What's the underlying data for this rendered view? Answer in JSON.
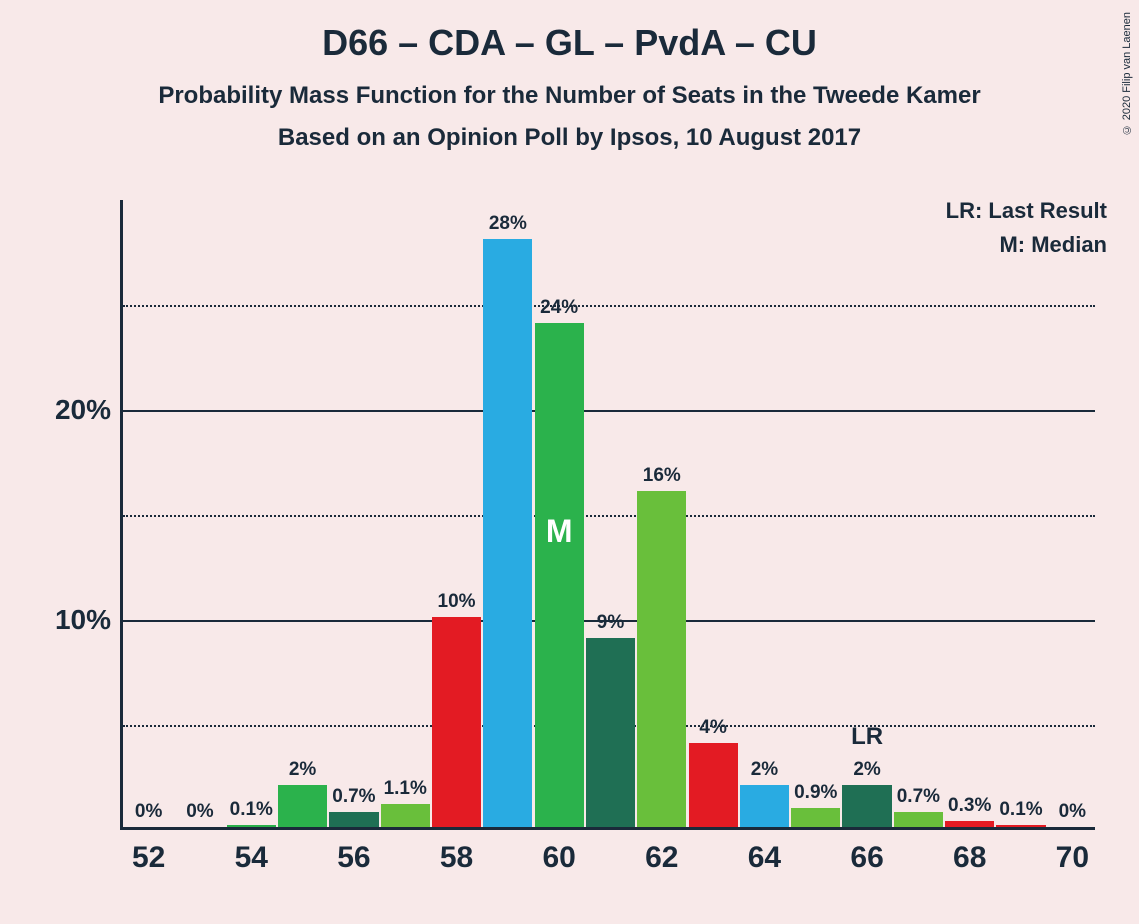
{
  "title": "D66 – CDA – GL – PvdA – CU",
  "subtitle1": "Probability Mass Function for the Number of Seats in the Tweede Kamer",
  "subtitle2": "Based on an Opinion Poll by Ipsos, 10 August 2017",
  "legend": {
    "lr": "LR: Last Result",
    "m": "M: Median"
  },
  "copyright": "© 2020 Filip van Laenen",
  "chart": {
    "type": "bar",
    "background_color": "#f8e9e9",
    "axis_color": "#1a2a3a",
    "grid_solid_color": "#1a2a3a",
    "grid_dotted_color": "#1a2a3a",
    "ymax": 30,
    "ytick_major": [
      10,
      20
    ],
    "ytick_minor": [
      5,
      15,
      25
    ],
    "ytick_labels": [
      "10%",
      "20%"
    ],
    "xticks": [
      52,
      54,
      56,
      58,
      60,
      62,
      64,
      66,
      68,
      70
    ],
    "xtick_labels": [
      "52",
      "54",
      "56",
      "58",
      "60",
      "62",
      "64",
      "66",
      "68",
      "70"
    ],
    "xmin": 51.5,
    "xmax": 70.5,
    "bar_width": 0.96,
    "bars": [
      {
        "x": 52,
        "value": 0,
        "label": "0%",
        "color": "#2bb24c"
      },
      {
        "x": 53,
        "value": 0,
        "label": "0%",
        "color": "#e31b23"
      },
      {
        "x": 54,
        "value": 0.1,
        "label": "0.1%",
        "color": "#29af4a"
      },
      {
        "x": 55,
        "value": 2,
        "label": "2%",
        "color": "#2bb24c"
      },
      {
        "x": 56,
        "value": 0.7,
        "label": "0.7%",
        "color": "#1f6f54"
      },
      {
        "x": 57,
        "value": 1.1,
        "label": "1.1%",
        "color": "#69bf3b"
      },
      {
        "x": 58,
        "value": 10,
        "label": "10%",
        "color": "#e31b23"
      },
      {
        "x": 59,
        "value": 28,
        "label": "28%",
        "color": "#29abe2"
      },
      {
        "x": 60,
        "value": 24,
        "label": "24%",
        "color": "#2bb24c"
      },
      {
        "x": 61,
        "value": 9,
        "label": "9%",
        "color": "#1f6f54"
      },
      {
        "x": 62,
        "value": 16,
        "label": "16%",
        "color": "#69bf3b"
      },
      {
        "x": 63,
        "value": 4,
        "label": "4%",
        "color": "#e31b23"
      },
      {
        "x": 64,
        "value": 2,
        "label": "2%",
        "color": "#29abe2"
      },
      {
        "x": 65,
        "value": 0.9,
        "label": "0.9%",
        "color": "#69bf3b"
      },
      {
        "x": 66,
        "value": 2,
        "label": "2%",
        "color": "#1f6f54"
      },
      {
        "x": 67,
        "value": 0.7,
        "label": "0.7%",
        "color": "#69bf3b"
      },
      {
        "x": 68,
        "value": 0.3,
        "label": "0.3%",
        "color": "#e31b23"
      },
      {
        "x": 69,
        "value": 0.1,
        "label": "0.1%",
        "color": "#e31b23"
      },
      {
        "x": 70,
        "value": 0,
        "label": "0%",
        "color": "#2bb24c"
      }
    ],
    "median_x": 60,
    "median_label": "M",
    "lr_x": 66,
    "lr_label": "LR",
    "label_fontsize": 19,
    "tick_fontsize": 28
  }
}
